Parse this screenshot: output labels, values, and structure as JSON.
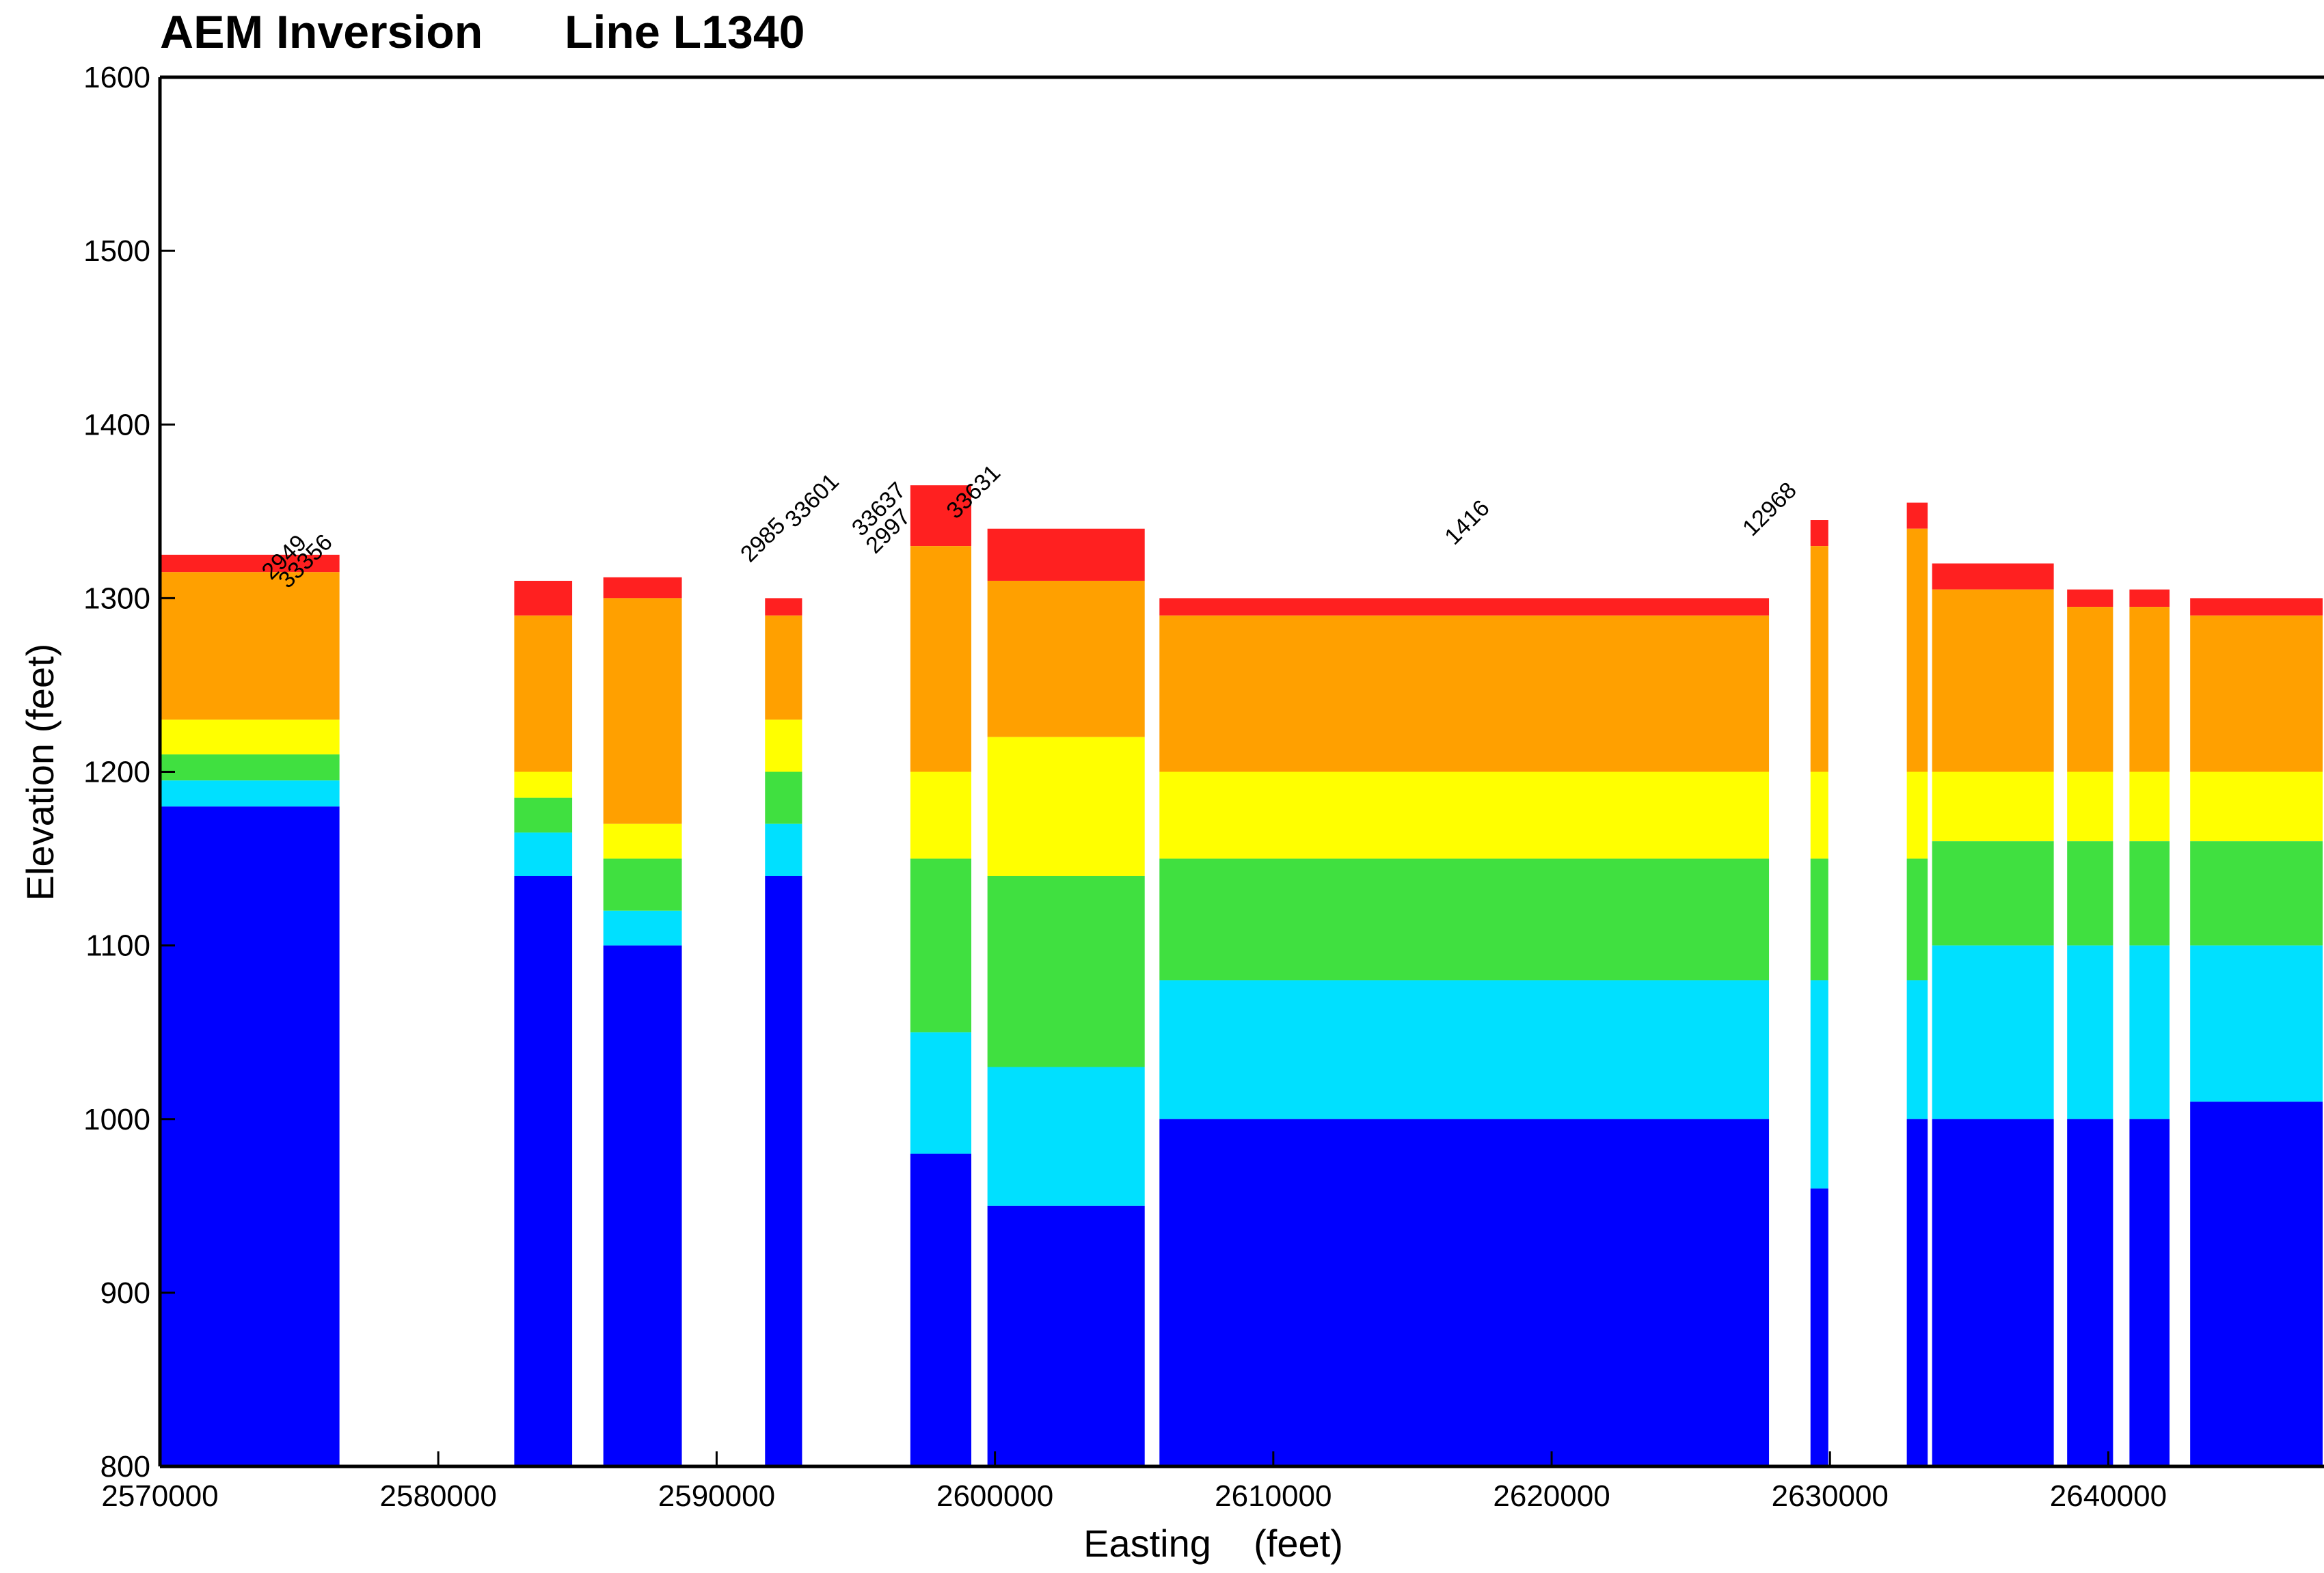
{
  "chart_data": {
    "type": "section",
    "title": "AEM Inversion",
    "subtitle": "Line L1340",
    "x_label": "Easting    (feet)",
    "y_label": "Elevation (feet)",
    "xlim": [
      2570000,
      2647700
    ],
    "ylim": [
      800,
      1600
    ],
    "xticks": [
      2570000,
      2580000,
      2590000,
      2600000,
      2610000,
      2620000,
      2630000,
      2640000
    ],
    "yticks": [
      800,
      900,
      1000,
      1100,
      1200,
      1300,
      1400,
      1500,
      1600
    ],
    "band_colors": [
      "#ff2020",
      "#ffa000",
      "#ffff00",
      "#40e040",
      "#00e0ff",
      "#0000ff"
    ],
    "sections": [
      {
        "x": [
          2570000,
          2576450
        ],
        "bounds": [
          1325,
          1315,
          1230,
          1210,
          1195,
          1180,
          800
        ]
      },
      {
        "x": [
          2582730,
          2584810
        ],
        "bounds": [
          1310,
          1290,
          1200,
          1185,
          1165,
          1140,
          800
        ]
      },
      {
        "x": [
          2585930,
          2588750
        ],
        "bounds": [
          1312,
          1300,
          1170,
          1150,
          1120,
          1100,
          800
        ]
      },
      {
        "x": [
          2591740,
          2593070
        ],
        "bounds": [
          1300,
          1290,
          1230,
          1200,
          1170,
          1140,
          800
        ]
      },
      {
        "x": [
          2596960,
          2599150
        ],
        "bounds": [
          1365,
          1330,
          1200,
          1150,
          1050,
          980,
          800
        ]
      },
      {
        "x": [
          2599730,
          2605380
        ],
        "bounds": [
          1340,
          1310,
          1220,
          1140,
          1030,
          950,
          800
        ]
      },
      {
        "x": [
          2605910,
          2627810
        ],
        "bounds": [
          1300,
          1290,
          1200,
          1150,
          1080,
          1000,
          800
        ]
      },
      {
        "x": [
          2629300,
          2629940
        ],
        "bounds": [
          1345,
          1330,
          1200,
          1150,
          1080,
          960,
          800
        ]
      },
      {
        "x": [
          2632760,
          2633510
        ],
        "bounds": [
          1355,
          1340,
          1200,
          1150,
          1080,
          1000,
          800
        ]
      },
      {
        "x": [
          2633670,
          2638040
        ],
        "bounds": [
          1320,
          1305,
          1200,
          1160,
          1100,
          1000,
          800
        ]
      },
      {
        "x": [
          2638520,
          2640170
        ],
        "bounds": [
          1305,
          1295,
          1200,
          1160,
          1100,
          1000,
          800
        ]
      },
      {
        "x": [
          2640760,
          2642200
        ],
        "bounds": [
          1305,
          1295,
          1200,
          1160,
          1100,
          1000,
          800
        ]
      },
      {
        "x": [
          2642940,
          2647700
        ],
        "bounds": [
          1300,
          1290,
          1200,
          1160,
          1100,
          1010,
          800
        ]
      }
    ],
    "annotations": [
      {
        "text": "2949",
        "x": 2574000,
        "elevation": 1310
      },
      {
        "text": "33356",
        "x": 2574600,
        "elevation": 1305
      },
      {
        "text": "2985",
        "x": 2591200,
        "elevation": 1320
      },
      {
        "text": "33601",
        "x": 2592800,
        "elevation": 1340
      },
      {
        "text": "33637",
        "x": 2595200,
        "elevation": 1335
      },
      {
        "text": "2997",
        "x": 2595700,
        "elevation": 1325
      },
      {
        "text": "33631",
        "x": 2598600,
        "elevation": 1345
      },
      {
        "text": "1416",
        "x": 2616500,
        "elevation": 1330
      },
      {
        "text": "12968",
        "x": 2627200,
        "elevation": 1335
      }
    ]
  }
}
